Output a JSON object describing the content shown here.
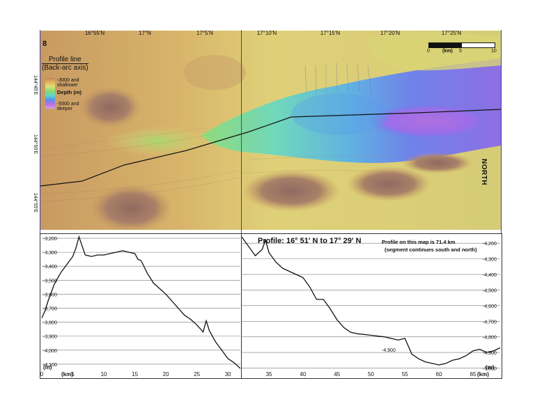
{
  "plate_number": "8",
  "latitude_labels": [
    "16°55'N",
    "17°N",
    "17°5'N",
    "17°10'N",
    "17°15'N",
    "17°20'N",
    "17°25'N"
  ],
  "longitude_labels": [
    "144°45'E",
    "144°50'E",
    "144°55'E"
  ],
  "legend": {
    "title_line1": "Profile line",
    "title_line2": "(Back-arc axis)",
    "shallow_line1": "-3000 and",
    "shallow_line2": "shallower",
    "depth_label": "Depth (m)",
    "deep_line1": "-5500 and",
    "deep_line2": "deeper",
    "colors": [
      "#c08560",
      "#e6b560",
      "#dde07a",
      "#8ad870",
      "#5fd8c8",
      "#5a8ef0",
      "#b870e0",
      "#d0a0e8"
    ]
  },
  "scale_bar": {
    "label": "(km)",
    "ticks": [
      "0",
      "5",
      "10"
    ]
  },
  "north_label": "NORTH",
  "profile": {
    "title": "Profile:  16° 51' N to 17° 29' N",
    "note_line1": "Profile on this map is 71.4 km",
    "note_line2": "(segment continues south and north)",
    "annotation": "-4,900"
  },
  "chart_data": [
    {
      "type": "line",
      "xlabel": "(km)",
      "ylabel": "(m)",
      "xlim": [
        0,
        32
      ],
      "ylim": [
        -4150,
        -3180
      ],
      "x_ticks": [
        "0",
        "5",
        "10",
        "15",
        "20",
        "25",
        "30"
      ],
      "y_ticks": [
        "-3,200",
        "-3,300",
        "-3,400",
        "-3,500",
        "-3,600",
        "-3,700",
        "-3,800",
        "-3,900",
        "-4,000",
        "-4,100"
      ],
      "grid": true,
      "series": [
        {
          "x": [
            0,
            0.5,
            1,
            1.5,
            2,
            3,
            4,
            5,
            5.5,
            6,
            6.3,
            7,
            8,
            9,
            10,
            11,
            12,
            13,
            14,
            15,
            15.5,
            16,
            17,
            18,
            19,
            20,
            21,
            22,
            23,
            24,
            25,
            26,
            26.5,
            27,
            28,
            29,
            30,
            31,
            32
          ],
          "y": [
            -3770,
            -3720,
            -3650,
            -3590,
            -3530,
            -3450,
            -3390,
            -3330,
            -3270,
            -3190,
            -3230,
            -3320,
            -3330,
            -3320,
            -3320,
            -3310,
            -3300,
            -3290,
            -3300,
            -3310,
            -3350,
            -3360,
            -3450,
            -3520,
            -3560,
            -3600,
            -3650,
            -3700,
            -3750,
            -3780,
            -3820,
            -3870,
            -3790,
            -3860,
            -3940,
            -4000,
            -4060,
            -4090,
            -4130
          ]
        }
      ]
    },
    {
      "type": "line",
      "xlabel": "(km)",
      "ylabel": "(m)",
      "xlim": [
        31,
        69
      ],
      "ylim": [
        -5020,
        -4150
      ],
      "x_ticks": [
        "35",
        "40",
        "45",
        "50",
        "55",
        "60",
        "65"
      ],
      "y_ticks": [
        "-4,200",
        "-4,300",
        "-4,400",
        "-4,500",
        "-4,600",
        "-4,700",
        "-4,800",
        "-4,900",
        "-5,000"
      ],
      "grid": true,
      "series": [
        {
          "x": [
            31,
            32,
            33,
            34,
            34.5,
            35,
            36,
            37,
            38,
            39,
            40,
            41,
            42,
            43,
            44,
            45,
            46,
            47,
            48,
            50,
            52,
            54,
            55,
            56,
            57,
            58,
            59,
            60,
            61,
            62,
            63,
            64,
            65,
            66,
            67,
            68,
            69
          ],
          "y": [
            -4160,
            -4220,
            -4280,
            -4240,
            -4180,
            -4260,
            -4320,
            -4360,
            -4380,
            -4400,
            -4420,
            -4480,
            -4560,
            -4560,
            -4620,
            -4690,
            -4740,
            -4770,
            -4780,
            -4790,
            -4800,
            -4820,
            -4810,
            -4910,
            -4940,
            -4960,
            -4970,
            -4980,
            -4970,
            -4950,
            -4940,
            -4920,
            -4890,
            -4880,
            -4900,
            -4890,
            -4870
          ]
        }
      ]
    }
  ]
}
